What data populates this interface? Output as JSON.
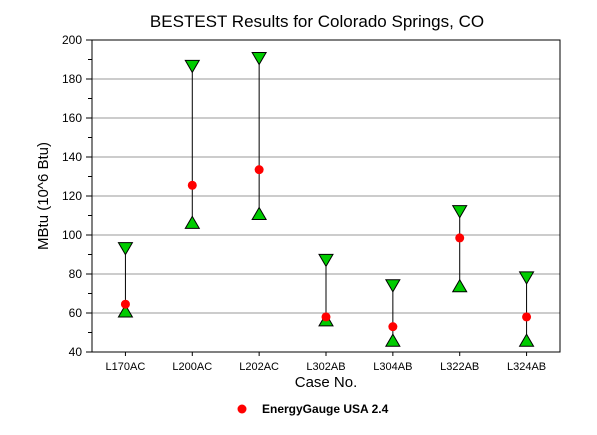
{
  "chart_data": {
    "type": "scatter",
    "title": "BESTEST Results for Colorado Springs, CO",
    "xlabel": "Case No.",
    "ylabel": "MBtu (10^6 Btu)",
    "ylim": [
      40,
      200
    ],
    "yticks": [
      40,
      60,
      80,
      100,
      120,
      140,
      160,
      180,
      200
    ],
    "grid": true,
    "legend_position": "bottom",
    "categories": [
      "L170AC",
      "L200AC",
      "L202AC",
      "L302AB",
      "L304AB",
      "L322AB",
      "L324AB"
    ],
    "series": [
      {
        "name": "EnergyGauge USA 2.4",
        "marker": "circle",
        "color": "#ff0000",
        "values": [
          64.5,
          125.5,
          133.5,
          58,
          53,
          98.5,
          58
        ]
      }
    ],
    "range_max": {
      "marker": "triangle-down",
      "color": "#00cc00",
      "values": [
        93,
        186.5,
        190.5,
        87,
        74,
        112,
        78
      ]
    },
    "range_min": {
      "marker": "triangle-up",
      "color": "#00cc00",
      "values": [
        61,
        106.5,
        111,
        56.5,
        46,
        74,
        46
      ]
    }
  }
}
